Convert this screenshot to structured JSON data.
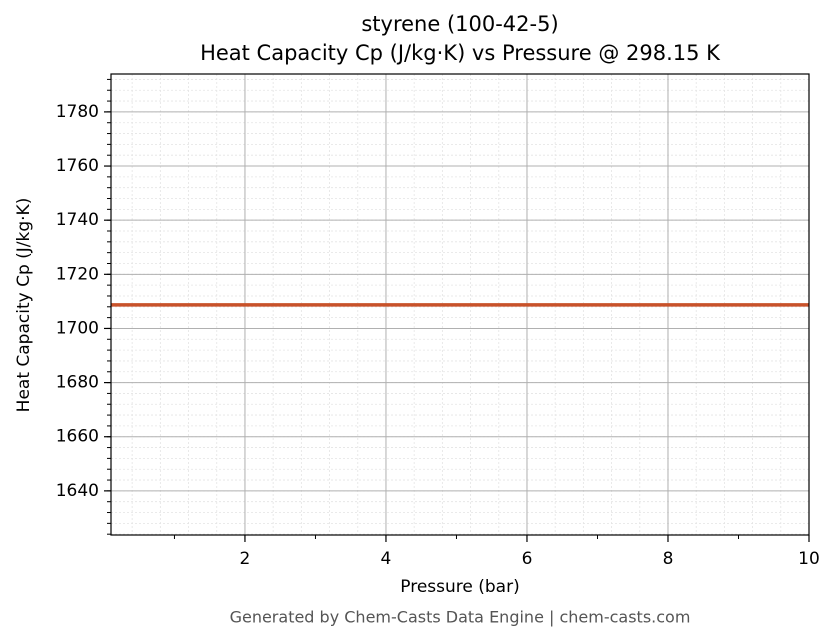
{
  "chart_data": {
    "type": "line",
    "title": "styrene (100-42-5)",
    "subtitle": "Heat Capacity Cp (J/kg·K) vs Pressure @ 298.15 K",
    "x_label": "Pressure (bar)",
    "y_label": "Heat Capacity Cp (J/kg·K)",
    "footer": "Generated by Chem-Casts Data Engine | chem-casts.com",
    "x": [
      0.1,
      10
    ],
    "series": [
      {
        "name": "Cp",
        "color": "#c8522a",
        "values": [
          1708.7,
          1708.7
        ]
      }
    ],
    "xlim": [
      0.1,
      10
    ],
    "xticks": [
      2,
      4,
      6,
      8,
      10
    ],
    "ylim": [
      1623.7,
      1794
    ],
    "yticks": [
      1640,
      1660,
      1680,
      1700,
      1720,
      1740,
      1760,
      1780
    ],
    "grid": true,
    "minor_grid": true
  }
}
